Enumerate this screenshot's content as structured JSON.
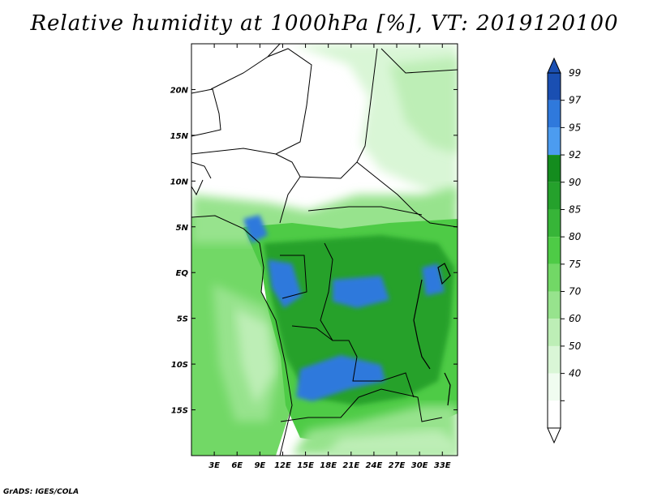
{
  "title": "Relative humidity at 1000hPa [%], VT: 2019120100",
  "credit": "GrADS: IGES/COLA",
  "map": {
    "lon_range": [
      0,
      35
    ],
    "lat_range": [
      -20,
      25
    ],
    "lon_ticks": [
      {
        "value": 3,
        "label": "3E"
      },
      {
        "value": 6,
        "label": "6E"
      },
      {
        "value": 9,
        "label": "9E"
      },
      {
        "value": 12,
        "label": "12E"
      },
      {
        "value": 15,
        "label": "15E"
      },
      {
        "value": 18,
        "label": "18E"
      },
      {
        "value": 21,
        "label": "21E"
      },
      {
        "value": 24,
        "label": "24E"
      },
      {
        "value": 27,
        "label": "27E"
      },
      {
        "value": 30,
        "label": "30E"
      },
      {
        "value": 33,
        "label": "33E"
      }
    ],
    "lat_ticks": [
      {
        "value": 20,
        "label": "20N"
      },
      {
        "value": 15,
        "label": "15N"
      },
      {
        "value": 10,
        "label": "10N"
      },
      {
        "value": 5,
        "label": "5N"
      },
      {
        "value": 0,
        "label": "EQ"
      },
      {
        "value": -5,
        "label": "5S"
      },
      {
        "value": -10,
        "label": "10S"
      },
      {
        "value": -15,
        "label": "15S"
      }
    ]
  },
  "colorbar": {
    "levels": [
      {
        "label": "40",
        "color": "#f0fcf0"
      },
      {
        "label": "50",
        "color": "#d9f6d6"
      },
      {
        "label": "60",
        "color": "#bdeeb6"
      },
      {
        "label": "70",
        "color": "#97e38d"
      },
      {
        "label": "75",
        "color": "#72d866"
      },
      {
        "label": "80",
        "color": "#4ecb46"
      },
      {
        "label": "85",
        "color": "#37b538"
      },
      {
        "label": "90",
        "color": "#25a12c"
      },
      {
        "label": "92",
        "color": "#148c1e"
      },
      {
        "label": "95",
        "color": "#4c9cf0"
      },
      {
        "label": "97",
        "color": "#2f79dc"
      },
      {
        "label": "99",
        "color": "#1a4fb2"
      }
    ],
    "below_color": "#ffffff",
    "above_color": "#1a4fb2"
  }
}
